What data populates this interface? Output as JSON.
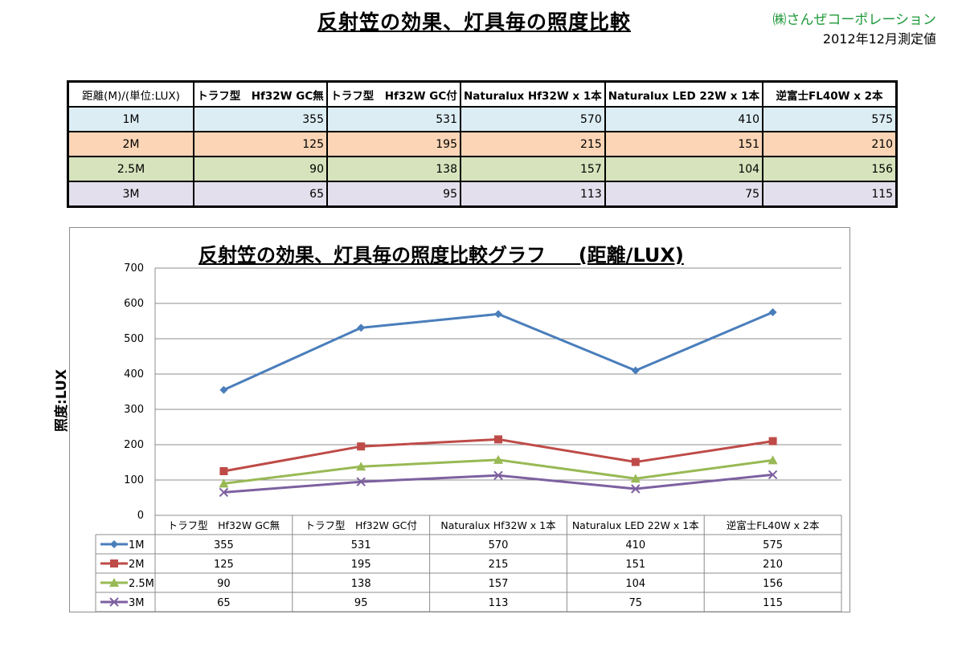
{
  "header": {
    "title": "反射笠の効果、灯具毎の照度比較",
    "company": "㈱さんぜコーポレーション",
    "measure_date": "2012年12月測定値"
  },
  "table": {
    "corner": "距離(M)/(単位:LUX)",
    "columns": [
      "トラフ型　Hf32W GC無",
      "トラフ型　Hf32W GC付",
      "Naturalux Hf32W x 1本",
      "Naturalux LED 22W x 1本",
      "逆富士FL40W x 2本"
    ],
    "rows": [
      {
        "label": "1M",
        "values": [
          "355",
          "531",
          "570",
          "410",
          "575"
        ]
      },
      {
        "label": "2M",
        "values": [
          "125",
          "195",
          "215",
          "151",
          "210"
        ]
      },
      {
        "label": "2.5M",
        "values": [
          "90",
          "138",
          "157",
          "104",
          "156"
        ]
      },
      {
        "label": "3M",
        "values": [
          "65",
          "95",
          "113",
          "75",
          "115"
        ]
      }
    ]
  },
  "chart_data": {
    "type": "line",
    "title": "反射笠の効果、灯具毎の照度比較グラフ　  (距離/LUX)",
    "ylabel": "照度:LUX",
    "xlabel": "",
    "categories": [
      "トラフ型　Hf32W GC無",
      "トラフ型　Hf32W GC付",
      "Naturalux Hf32W x 1本",
      "Naturalux LED 22W x 1本",
      "逆富士FL40W x 2本"
    ],
    "ylim": [
      0,
      700
    ],
    "yticks": [
      0,
      100,
      200,
      300,
      400,
      500,
      600,
      700
    ],
    "grid": true,
    "legend": "data-table-below",
    "series": [
      {
        "name": "1M",
        "values": [
          355,
          531,
          570,
          410,
          575
        ],
        "color": "#4a7ebb",
        "marker": "diamond"
      },
      {
        "name": "2M",
        "values": [
          125,
          195,
          215,
          151,
          210
        ],
        "color": "#be4b48",
        "marker": "square"
      },
      {
        "name": "2.5M",
        "values": [
          90,
          138,
          157,
          104,
          156
        ],
        "color": "#98b954",
        "marker": "triangle"
      },
      {
        "name": "3M",
        "values": [
          65,
          95,
          113,
          75,
          115
        ],
        "color": "#7d60a0",
        "marker": "x"
      }
    ]
  }
}
